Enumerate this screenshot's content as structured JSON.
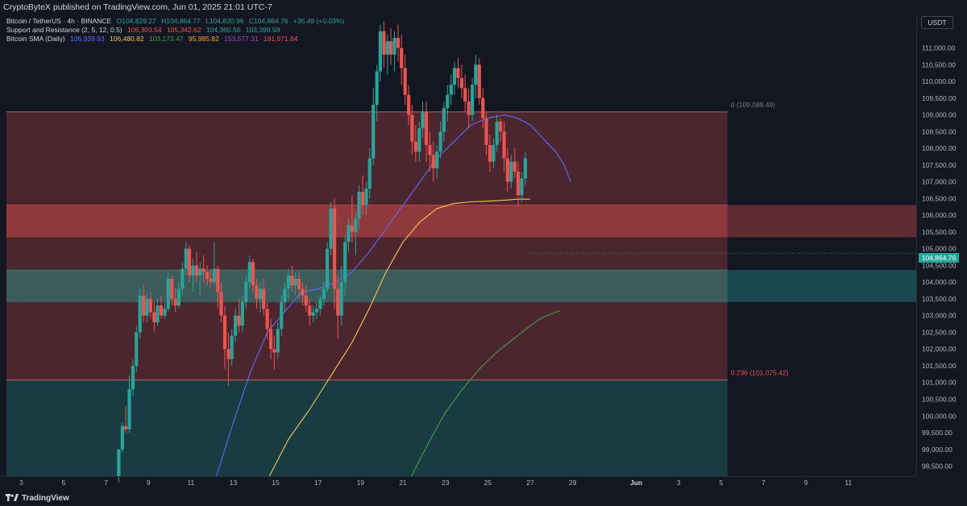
{
  "header": {
    "publisher_line": "CryptoByteX published on TradingView.com, Jun 01, 2025 21:01 UTC-7"
  },
  "legend": {
    "main": {
      "title": "Bitcoin / TetherUS · 4h · BINANCE",
      "open": "O104,829.27",
      "high": "H104,864.77",
      "low": "L104,820.96",
      "close": "C104,864.76",
      "change": "+35.49 (+0.03%)"
    },
    "sr": {
      "title": "Support and Resistance (2, 5, 12, 0.5)",
      "v1": "106,303.54",
      "v2": "105,342.62",
      "v3": "104,360.50",
      "v4": "103,399.59",
      "c1": "#ef5350",
      "c2": "#ef5350",
      "c3": "#26a69a",
      "c4": "#26a69a"
    },
    "sma": {
      "title": "Bitcoin SMA (Daily)",
      "v1": "106,939.93",
      "v2": "106,480.82",
      "v3": "103,173.47",
      "v4": "95,985.82",
      "v5": "153,577.31",
      "v6": "191,971.64",
      "c1": "#5b6cf9",
      "c2": "#f9c74f",
      "c3": "#43a047",
      "c4": "#ffa726",
      "c5": "#ab47bc",
      "c6": "#ef5350"
    }
  },
  "axis": {
    "currency": "USDT",
    "current_price_label": "104,864.76"
  },
  "footer": {
    "brand": "TradingView"
  },
  "colors": {
    "background": "#131722",
    "up": "#26a69a",
    "down": "#ef5350",
    "sma_blue": "#5b6cf9",
    "sma_yellow": "#f9c74f",
    "sma_green": "#43a047",
    "zone_resistance": "#ef5350",
    "zone_support": "#26a69a"
  },
  "chart_data": {
    "type": "candlestick",
    "title": "Bitcoin / TetherUS · 4h · BINANCE",
    "ylim": [
      98200,
      112000
    ],
    "grid": false,
    "y_ticks": [
      98500,
      99000,
      99500,
      100000,
      100500,
      101000,
      101500,
      102000,
      102500,
      103000,
      103500,
      104000,
      104500,
      105000,
      105500,
      106000,
      106500,
      107000,
      107500,
      108000,
      108500,
      109000,
      109500,
      110000,
      110500,
      111000,
      111500
    ],
    "y_tick_labels": [
      "98,500.00",
      "99,000.00",
      "99,500.00",
      "100,000.00",
      "100,500.00",
      "101,000.00",
      "101,500.00",
      "102,000.00",
      "102,500.00",
      "103,000.00",
      "103,500.00",
      "104,000.00",
      "104,500.00",
      "105,000.00",
      "105,500.00",
      "106,000.00",
      "106,500.00",
      "107,000.00",
      "107,500.00",
      "108,000.00",
      "108,500.00",
      "109,000.00",
      "109,500.00",
      "110,000.00",
      "110,500.00",
      "111,000.00",
      "111,500.00"
    ],
    "x_ticks": [
      "3",
      "5",
      "7",
      "9",
      "11",
      "13",
      "15",
      "17",
      "19",
      "21",
      "23",
      "25",
      "27",
      "29",
      "Jun",
      "3",
      "5",
      "7",
      "9",
      "11"
    ],
    "x_tick_days": [
      3,
      5,
      7,
      9,
      11,
      13,
      15,
      17,
      19,
      21,
      23,
      25,
      27,
      29,
      32,
      34,
      36,
      38,
      40,
      42
    ],
    "x_day_range": [
      2,
      45.2
    ],
    "zones": [
      {
        "name": "resistance-upper",
        "from": 105342.62,
        "to": 106303.54,
        "kind": "resistance",
        "strong": true
      },
      {
        "name": "resistance-range",
        "from": 101075.42,
        "to": 109089.49,
        "kind": "resistance",
        "strong": false
      },
      {
        "name": "support-zone",
        "from": 103399.59,
        "to": 104360.5,
        "kind": "support",
        "strong": true
      },
      {
        "name": "support-lower",
        "from": 98200,
        "to": 101075.42,
        "kind": "support",
        "strong": false
      }
    ],
    "fib_levels": [
      {
        "label": "0 (109,089.49)",
        "value": 109089.49
      },
      {
        "label": "0.236 (101,075.42)",
        "value": 101075.42
      }
    ],
    "zone_end_day": 36.3,
    "last_price": 104864.76,
    "candles": [
      {
        "d": 7.6,
        "o": 98200,
        "h": 99000,
        "l": 98000,
        "c": 99000
      },
      {
        "d": 7.77,
        "o": 99000,
        "h": 99800,
        "l": 98900,
        "c": 99700
      },
      {
        "d": 7.93,
        "o": 99700,
        "h": 100300,
        "l": 99500,
        "c": 99600
      },
      {
        "d": 8.1,
        "o": 99600,
        "h": 101200,
        "l": 99500,
        "c": 100800
      },
      {
        "d": 8.27,
        "o": 100800,
        "h": 101700,
        "l": 100600,
        "c": 101500
      },
      {
        "d": 8.43,
        "o": 101500,
        "h": 102700,
        "l": 101300,
        "c": 102500
      },
      {
        "d": 8.6,
        "o": 102500,
        "h": 103800,
        "l": 102300,
        "c": 103600
      },
      {
        "d": 8.77,
        "o": 103600,
        "h": 103900,
        "l": 102800,
        "c": 103000
      },
      {
        "d": 8.93,
        "o": 103000,
        "h": 103700,
        "l": 102800,
        "c": 103500
      },
      {
        "d": 9.1,
        "o": 103500,
        "h": 103700,
        "l": 102900,
        "c": 103100
      },
      {
        "d": 9.27,
        "o": 103100,
        "h": 103400,
        "l": 102500,
        "c": 102800
      },
      {
        "d": 9.43,
        "o": 102800,
        "h": 103500,
        "l": 102700,
        "c": 103300
      },
      {
        "d": 9.6,
        "o": 103300,
        "h": 103600,
        "l": 102900,
        "c": 103000
      },
      {
        "d": 9.77,
        "o": 103000,
        "h": 103400,
        "l": 102900,
        "c": 103200
      },
      {
        "d": 9.93,
        "o": 103200,
        "h": 104300,
        "l": 103100,
        "c": 104100
      },
      {
        "d": 10.1,
        "o": 104100,
        "h": 104200,
        "l": 103300,
        "c": 103500
      },
      {
        "d": 10.27,
        "o": 103500,
        "h": 103800,
        "l": 103100,
        "c": 103300
      },
      {
        "d": 10.43,
        "o": 103300,
        "h": 104000,
        "l": 103200,
        "c": 103800
      },
      {
        "d": 10.6,
        "o": 103800,
        "h": 104600,
        "l": 103600,
        "c": 104400
      },
      {
        "d": 10.77,
        "o": 104400,
        "h": 105200,
        "l": 104200,
        "c": 105000
      },
      {
        "d": 10.93,
        "o": 105000,
        "h": 105100,
        "l": 104000,
        "c": 104200
      },
      {
        "d": 11.1,
        "o": 104200,
        "h": 104700,
        "l": 103700,
        "c": 104500
      },
      {
        "d": 11.27,
        "o": 104500,
        "h": 104900,
        "l": 104000,
        "c": 104200
      },
      {
        "d": 11.43,
        "o": 104200,
        "h": 104600,
        "l": 103600,
        "c": 104400
      },
      {
        "d": 11.6,
        "o": 104400,
        "h": 104800,
        "l": 104000,
        "c": 104300
      },
      {
        "d": 11.77,
        "o": 104300,
        "h": 104500,
        "l": 103900,
        "c": 104100
      },
      {
        "d": 11.93,
        "o": 104100,
        "h": 104400,
        "l": 103800,
        "c": 104000
      },
      {
        "d": 12.1,
        "o": 104000,
        "h": 105200,
        "l": 103900,
        "c": 104400
      },
      {
        "d": 12.27,
        "o": 104400,
        "h": 104500,
        "l": 103200,
        "c": 103700
      },
      {
        "d": 12.43,
        "o": 103700,
        "h": 104000,
        "l": 102800,
        "c": 103000
      },
      {
        "d": 12.6,
        "o": 103000,
        "h": 103300,
        "l": 101400,
        "c": 102000
      },
      {
        "d": 12.77,
        "o": 102000,
        "h": 102500,
        "l": 100900,
        "c": 101700
      },
      {
        "d": 12.93,
        "o": 101700,
        "h": 102600,
        "l": 101500,
        "c": 102400
      },
      {
        "d": 13.1,
        "o": 102400,
        "h": 103200,
        "l": 102200,
        "c": 103000
      },
      {
        "d": 13.27,
        "o": 103000,
        "h": 103500,
        "l": 102500,
        "c": 102700
      },
      {
        "d": 13.43,
        "o": 102700,
        "h": 103600,
        "l": 102500,
        "c": 103400
      },
      {
        "d": 13.6,
        "o": 103400,
        "h": 104200,
        "l": 103200,
        "c": 104000
      },
      {
        "d": 13.77,
        "o": 104000,
        "h": 104800,
        "l": 103800,
        "c": 104600
      },
      {
        "d": 13.93,
        "o": 104600,
        "h": 104700,
        "l": 103700,
        "c": 103900
      },
      {
        "d": 14.1,
        "o": 103900,
        "h": 104100,
        "l": 103200,
        "c": 103500
      },
      {
        "d": 14.27,
        "o": 103500,
        "h": 104000,
        "l": 103100,
        "c": 103800
      },
      {
        "d": 14.43,
        "o": 103800,
        "h": 104100,
        "l": 103000,
        "c": 103200
      },
      {
        "d": 14.6,
        "o": 103200,
        "h": 103400,
        "l": 102300,
        "c": 102600
      },
      {
        "d": 14.77,
        "o": 102600,
        "h": 102900,
        "l": 101700,
        "c": 102000
      },
      {
        "d": 14.93,
        "o": 102000,
        "h": 102400,
        "l": 101400,
        "c": 101900
      },
      {
        "d": 15.1,
        "o": 101900,
        "h": 102800,
        "l": 101700,
        "c": 102600
      },
      {
        "d": 15.27,
        "o": 102600,
        "h": 103600,
        "l": 102400,
        "c": 103400
      },
      {
        "d": 15.43,
        "o": 103400,
        "h": 104000,
        "l": 103100,
        "c": 103800
      },
      {
        "d": 15.6,
        "o": 103800,
        "h": 104400,
        "l": 103500,
        "c": 104200
      },
      {
        "d": 15.77,
        "o": 104200,
        "h": 104500,
        "l": 103700,
        "c": 103900
      },
      {
        "d": 15.93,
        "o": 103900,
        "h": 104300,
        "l": 103600,
        "c": 104100
      },
      {
        "d": 16.1,
        "o": 104100,
        "h": 104300,
        "l": 103500,
        "c": 103800
      },
      {
        "d": 16.27,
        "o": 103800,
        "h": 104000,
        "l": 103300,
        "c": 103600
      },
      {
        "d": 16.43,
        "o": 103600,
        "h": 103900,
        "l": 103100,
        "c": 103300
      },
      {
        "d": 16.6,
        "o": 103300,
        "h": 103500,
        "l": 102700,
        "c": 103000
      },
      {
        "d": 16.77,
        "o": 103000,
        "h": 103300,
        "l": 102800,
        "c": 103100
      },
      {
        "d": 16.93,
        "o": 103100,
        "h": 103400,
        "l": 102900,
        "c": 103200
      },
      {
        "d": 17.1,
        "o": 103200,
        "h": 103600,
        "l": 103000,
        "c": 103500
      },
      {
        "d": 17.27,
        "o": 103500,
        "h": 104000,
        "l": 103300,
        "c": 103800
      },
      {
        "d": 17.43,
        "o": 103800,
        "h": 105200,
        "l": 103700,
        "c": 105000
      },
      {
        "d": 17.6,
        "o": 105000,
        "h": 106400,
        "l": 104800,
        "c": 106200
      },
      {
        "d": 17.77,
        "o": 106200,
        "h": 106500,
        "l": 103200,
        "c": 103800
      },
      {
        "d": 17.93,
        "o": 103800,
        "h": 104200,
        "l": 102300,
        "c": 103000
      },
      {
        "d": 18.1,
        "o": 103000,
        "h": 104500,
        "l": 102700,
        "c": 104000
      },
      {
        "d": 18.27,
        "o": 104000,
        "h": 105400,
        "l": 103600,
        "c": 105200
      },
      {
        "d": 18.43,
        "o": 105200,
        "h": 105900,
        "l": 104900,
        "c": 105700
      },
      {
        "d": 18.6,
        "o": 105700,
        "h": 106600,
        "l": 105200,
        "c": 105500
      },
      {
        "d": 18.77,
        "o": 105500,
        "h": 106100,
        "l": 104800,
        "c": 105900
      },
      {
        "d": 18.93,
        "o": 105900,
        "h": 106900,
        "l": 105600,
        "c": 106700
      },
      {
        "d": 19.1,
        "o": 106700,
        "h": 107200,
        "l": 106000,
        "c": 106300
      },
      {
        "d": 19.27,
        "o": 106300,
        "h": 107000,
        "l": 106000,
        "c": 106800
      },
      {
        "d": 19.43,
        "o": 106800,
        "h": 108000,
        "l": 106500,
        "c": 107700
      },
      {
        "d": 19.6,
        "o": 107700,
        "h": 109800,
        "l": 107500,
        "c": 109300
      },
      {
        "d": 19.77,
        "o": 109300,
        "h": 110500,
        "l": 108800,
        "c": 110300
      },
      {
        "d": 19.93,
        "o": 110300,
        "h": 111700,
        "l": 110000,
        "c": 111500
      },
      {
        "d": 20.1,
        "o": 111500,
        "h": 111800,
        "l": 110400,
        "c": 110800
      },
      {
        "d": 20.27,
        "o": 110800,
        "h": 111400,
        "l": 110200,
        "c": 111200
      },
      {
        "d": 20.43,
        "o": 111200,
        "h": 111600,
        "l": 110500,
        "c": 110800
      },
      {
        "d": 20.6,
        "o": 110800,
        "h": 111500,
        "l": 110300,
        "c": 111300
      },
      {
        "d": 20.77,
        "o": 111300,
        "h": 111700,
        "l": 110600,
        "c": 111000
      },
      {
        "d": 20.93,
        "o": 111000,
        "h": 111400,
        "l": 109900,
        "c": 110400
      },
      {
        "d": 21.1,
        "o": 110400,
        "h": 110800,
        "l": 109300,
        "c": 109600
      },
      {
        "d": 21.27,
        "o": 109600,
        "h": 109900,
        "l": 108700,
        "c": 109000
      },
      {
        "d": 21.43,
        "o": 109000,
        "h": 109300,
        "l": 107800,
        "c": 108200
      },
      {
        "d": 21.6,
        "o": 108200,
        "h": 108700,
        "l": 107600,
        "c": 107900
      },
      {
        "d": 21.77,
        "o": 107900,
        "h": 108800,
        "l": 107600,
        "c": 108600
      },
      {
        "d": 21.93,
        "o": 108600,
        "h": 109400,
        "l": 108300,
        "c": 109100
      },
      {
        "d": 22.1,
        "o": 109100,
        "h": 109400,
        "l": 107600,
        "c": 108100
      },
      {
        "d": 22.27,
        "o": 108100,
        "h": 108500,
        "l": 107300,
        "c": 107800
      },
      {
        "d": 22.43,
        "o": 107800,
        "h": 108200,
        "l": 107000,
        "c": 107400
      },
      {
        "d": 22.6,
        "o": 107400,
        "h": 108100,
        "l": 107100,
        "c": 107900
      },
      {
        "d": 22.77,
        "o": 107900,
        "h": 108800,
        "l": 107700,
        "c": 108500
      },
      {
        "d": 22.93,
        "o": 108500,
        "h": 109400,
        "l": 108200,
        "c": 109200
      },
      {
        "d": 23.1,
        "o": 109200,
        "h": 109900,
        "l": 108800,
        "c": 109600
      },
      {
        "d": 23.27,
        "o": 109600,
        "h": 110200,
        "l": 109300,
        "c": 109900
      },
      {
        "d": 23.43,
        "o": 109900,
        "h": 110600,
        "l": 109600,
        "c": 110400
      },
      {
        "d": 23.6,
        "o": 110400,
        "h": 110700,
        "l": 109800,
        "c": 110100
      },
      {
        "d": 23.77,
        "o": 110100,
        "h": 110500,
        "l": 109500,
        "c": 109800
      },
      {
        "d": 23.93,
        "o": 109800,
        "h": 110200,
        "l": 109100,
        "c": 109400
      },
      {
        "d": 24.1,
        "o": 109400,
        "h": 109800,
        "l": 108600,
        "c": 109000
      },
      {
        "d": 24.27,
        "o": 109000,
        "h": 110100,
        "l": 108800,
        "c": 109900
      },
      {
        "d": 24.43,
        "o": 109900,
        "h": 110800,
        "l": 109500,
        "c": 110500
      },
      {
        "d": 24.6,
        "o": 110500,
        "h": 110700,
        "l": 109300,
        "c": 109500
      },
      {
        "d": 24.77,
        "o": 109500,
        "h": 109800,
        "l": 108600,
        "c": 108900
      },
      {
        "d": 24.93,
        "o": 108900,
        "h": 109100,
        "l": 107800,
        "c": 108100
      },
      {
        "d": 25.1,
        "o": 108100,
        "h": 108400,
        "l": 107300,
        "c": 107600
      },
      {
        "d": 25.27,
        "o": 107600,
        "h": 108300,
        "l": 107400,
        "c": 108100
      },
      {
        "d": 25.43,
        "o": 108100,
        "h": 109000,
        "l": 107900,
        "c": 108800
      },
      {
        "d": 25.6,
        "o": 108800,
        "h": 108900,
        "l": 108200,
        "c": 108500
      },
      {
        "d": 25.77,
        "o": 108500,
        "h": 108800,
        "l": 107300,
        "c": 107700
      },
      {
        "d": 25.93,
        "o": 107700,
        "h": 108000,
        "l": 106700,
        "c": 107000
      },
      {
        "d": 26.1,
        "o": 107000,
        "h": 107800,
        "l": 106800,
        "c": 107600
      },
      {
        "d": 26.27,
        "o": 107600,
        "h": 108000,
        "l": 107100,
        "c": 107300
      },
      {
        "d": 26.43,
        "o": 107300,
        "h": 107600,
        "l": 106300,
        "c": 106600
      },
      {
        "d": 26.6,
        "o": 106600,
        "h": 107300,
        "l": 106400,
        "c": 107100
      },
      {
        "d": 26.77,
        "o": 107100,
        "h": 107900,
        "l": 106900,
        "c": 107700
      }
    ]
  }
}
